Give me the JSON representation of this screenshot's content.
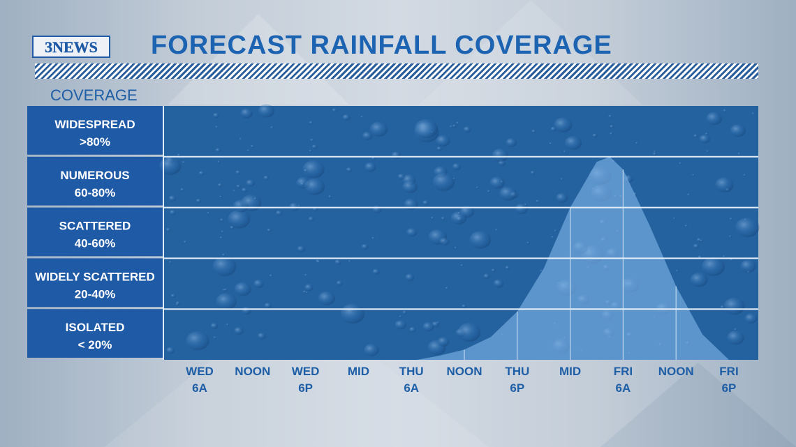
{
  "logo": {
    "text": "3NEWS"
  },
  "title": "FORECAST RAINFALL COVERAGE",
  "colors": {
    "accent": "#1c63b2",
    "panel": "#1f5aa6",
    "area": "#7fb4e6"
  },
  "chart_data": {
    "type": "area",
    "ylabel": "COVERAGE",
    "categories": [
      {
        "line1": "WIDESPREAD",
        "line2": ">80%",
        "low": 80,
        "high": 100
      },
      {
        "line1": "NUMEROUS",
        "line2": "60-80%",
        "low": 60,
        "high": 80
      },
      {
        "line1": "SCATTERED",
        "line2": "40-60%",
        "low": 40,
        "high": 60
      },
      {
        "line1": "WIDELY SCATTERED",
        "line2": "20-40%",
        "low": 20,
        "high": 40
      },
      {
        "line1": "ISOLATED",
        "line2": "< 20%",
        "low": 0,
        "high": 20
      }
    ],
    "x_ticks": [
      {
        "line1": "WED",
        "line2": "6A"
      },
      {
        "line1": "NOON",
        "line2": ""
      },
      {
        "line1": "WED",
        "line2": "6P"
      },
      {
        "line1": "MID",
        "line2": ""
      },
      {
        "line1": "THU",
        "line2": "6A"
      },
      {
        "line1": "NOON",
        "line2": ""
      },
      {
        "line1": "THU",
        "line2": "6P"
      },
      {
        "line1": "MID",
        "line2": ""
      },
      {
        "line1": "FRI",
        "line2": "6A"
      },
      {
        "line1": "NOON",
        "line2": ""
      },
      {
        "line1": "FRI",
        "line2": "6P"
      }
    ],
    "ylim": [
      0,
      100
    ],
    "series": [
      {
        "x": [
          4.1,
          4.5,
          5.0,
          5.5,
          6.0,
          6.5,
          7.0,
          7.5,
          7.75,
          8.0,
          8.5,
          9.0,
          9.5,
          10.0
        ],
        "values": [
          0,
          1.5,
          4,
          9,
          19,
          36,
          60,
          78,
          80,
          75,
          53,
          29,
          10,
          0
        ]
      }
    ]
  }
}
